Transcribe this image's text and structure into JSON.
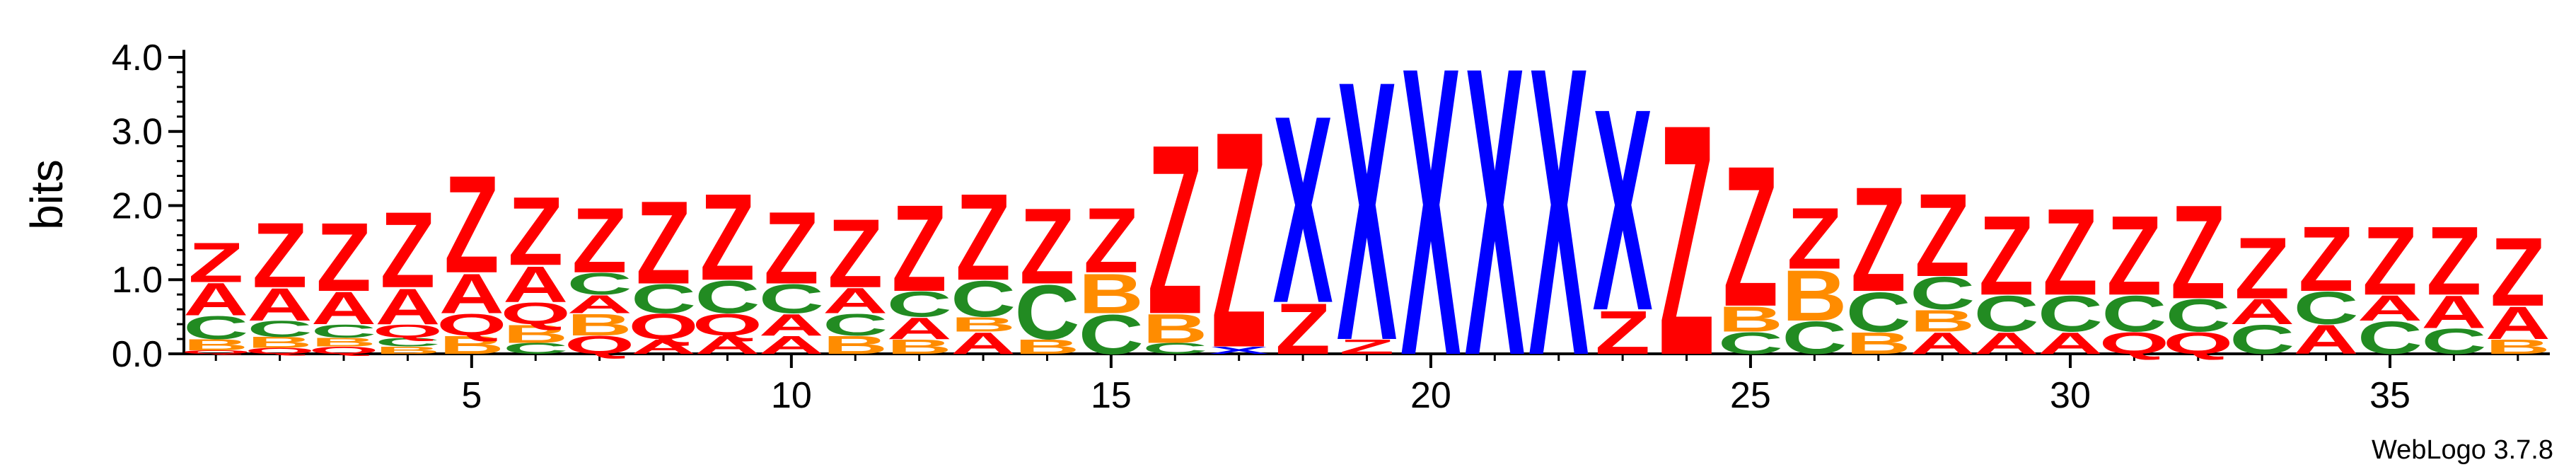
{
  "chart_data": {
    "type": "sequence-logo",
    "title": "",
    "xlabel": "",
    "ylabel": "bits",
    "ylim": [
      0,
      4.2
    ],
    "yticks": [
      0.0,
      1.0,
      2.0,
      3.0,
      4.0
    ],
    "ytick_labels": [
      "0.0",
      "1.0",
      "2.0",
      "3.0",
      "4.0"
    ],
    "xticks": [
      5,
      10,
      15,
      20,
      25,
      30,
      35
    ],
    "xtick_labels": [
      "5",
      "10",
      "15",
      "20",
      "25",
      "30",
      "35"
    ],
    "positions": 37,
    "credit": "WebLogo 3.7.8",
    "colors": {
      "Z": "#ff0000",
      "X": "#0000ff",
      "A": "#ff0000",
      "C": "#228b22",
      "B": "#ff8c00",
      "Q": "#ff0000",
      "D": "#800080"
    },
    "stacks": [
      [
        {
          "l": "Q",
          "h": 0.05
        },
        {
          "l": "B",
          "h": 0.15
        },
        {
          "l": "C",
          "h": 0.32
        },
        {
          "l": "A",
          "h": 0.45
        },
        {
          "l": "Z",
          "h": 0.55
        }
      ],
      [
        {
          "l": "Q",
          "h": 0.08
        },
        {
          "l": "B",
          "h": 0.15
        },
        {
          "l": "C",
          "h": 0.22
        },
        {
          "l": "A",
          "h": 0.45
        },
        {
          "l": "Z",
          "h": 0.9
        }
      ],
      [
        {
          "l": "Q",
          "h": 0.1
        },
        {
          "l": "B",
          "h": 0.12
        },
        {
          "l": "C",
          "h": 0.18
        },
        {
          "l": "A",
          "h": 0.45
        },
        {
          "l": "Z",
          "h": 0.95
        }
      ],
      [
        {
          "l": "B",
          "h": 0.1
        },
        {
          "l": "C",
          "h": 0.12
        },
        {
          "l": "Q",
          "h": 0.18
        },
        {
          "l": "A",
          "h": 0.5
        },
        {
          "l": "Z",
          "h": 1.05
        }
      ],
      [
        {
          "l": "B",
          "h": 0.25
        },
        {
          "l": "Q",
          "h": 0.3
        },
        {
          "l": "A",
          "h": 0.55
        },
        {
          "l": "Z",
          "h": 1.35
        }
      ],
      [
        {
          "l": "C",
          "h": 0.15
        },
        {
          "l": "B",
          "h": 0.25
        },
        {
          "l": "Q",
          "h": 0.3
        },
        {
          "l": "A",
          "h": 0.5
        },
        {
          "l": "Z",
          "h": 0.95
        }
      ],
      [
        {
          "l": "Q",
          "h": 0.25
        },
        {
          "l": "B",
          "h": 0.3
        },
        {
          "l": "A",
          "h": 0.25
        },
        {
          "l": "C",
          "h": 0.3
        },
        {
          "l": "Z",
          "h": 0.9
        }
      ],
      [
        {
          "l": "A",
          "h": 0.2
        },
        {
          "l": "Q",
          "h": 0.35
        },
        {
          "l": "C",
          "h": 0.4
        },
        {
          "l": "Z",
          "h": 1.15
        }
      ],
      [
        {
          "l": "A",
          "h": 0.25
        },
        {
          "l": "Q",
          "h": 0.3
        },
        {
          "l": "C",
          "h": 0.45
        },
        {
          "l": "Z",
          "h": 1.2
        }
      ],
      [
        {
          "l": "A",
          "h": 0.25
        },
        {
          "l": "A",
          "h": 0.3
        },
        {
          "l": "C",
          "h": 0.4
        },
        {
          "l": "Z",
          "h": 1.0
        }
      ],
      [
        {
          "l": "B",
          "h": 0.25
        },
        {
          "l": "C",
          "h": 0.3
        },
        {
          "l": "A",
          "h": 0.35
        },
        {
          "l": "Z",
          "h": 0.95
        }
      ],
      [
        {
          "l": "B",
          "h": 0.2
        },
        {
          "l": "A",
          "h": 0.3
        },
        {
          "l": "C",
          "h": 0.35
        },
        {
          "l": "Z",
          "h": 1.2
        }
      ],
      [
        {
          "l": "A",
          "h": 0.3
        },
        {
          "l": "B",
          "h": 0.2
        },
        {
          "l": "C",
          "h": 0.5
        },
        {
          "l": "Z",
          "h": 1.2
        }
      ],
      [
        {
          "l": "B",
          "h": 0.2
        },
        {
          "l": "C",
          "h": 0.75
        },
        {
          "l": "Z",
          "h": 1.05
        }
      ],
      [
        {
          "l": "C",
          "h": 0.55
        },
        {
          "l": "B",
          "h": 0.55
        },
        {
          "l": "Z",
          "h": 0.9
        }
      ],
      [
        {
          "l": "C",
          "h": 0.15
        },
        {
          "l": "B",
          "h": 0.4
        },
        {
          "l": "Z",
          "h": 2.35
        }
      ],
      [
        {
          "l": "X",
          "h": 0.1
        },
        {
          "l": "Z",
          "h": 3.0
        }
      ],
      [
        {
          "l": "Z",
          "h": 0.7
        },
        {
          "l": "X",
          "h": 2.6
        }
      ],
      [
        {
          "l": "Z",
          "h": 0.2
        },
        {
          "l": "X",
          "h": 3.6
        }
      ],
      [
        {
          "l": "X",
          "h": 4.0
        }
      ],
      [
        {
          "l": "X",
          "h": 4.0
        }
      ],
      [
        {
          "l": "X",
          "h": 4.0
        }
      ],
      [
        {
          "l": "Z",
          "h": 0.6
        },
        {
          "l": "X",
          "h": 2.8
        }
      ],
      [
        {
          "l": "Z",
          "h": 3.2
        }
      ],
      [
        {
          "l": "C",
          "h": 0.3
        },
        {
          "l": "B",
          "h": 0.35
        },
        {
          "l": "Z",
          "h": 1.95
        }
      ],
      [
        {
          "l": "C",
          "h": 0.45
        },
        {
          "l": "B",
          "h": 0.7
        },
        {
          "l": "Z",
          "h": 0.85
        }
      ],
      [
        {
          "l": "B",
          "h": 0.3
        },
        {
          "l": "C",
          "h": 0.55
        },
        {
          "l": "Z",
          "h": 1.45
        }
      ],
      [
        {
          "l": "A",
          "h": 0.3
        },
        {
          "l": "B",
          "h": 0.3
        },
        {
          "l": "C",
          "h": 0.45
        },
        {
          "l": "Z",
          "h": 1.15
        }
      ],
      [
        {
          "l": "A",
          "h": 0.3
        },
        {
          "l": "C",
          "h": 0.5
        },
        {
          "l": "Z",
          "h": 1.1
        }
      ],
      [
        {
          "l": "A",
          "h": 0.3
        },
        {
          "l": "C",
          "h": 0.5
        },
        {
          "l": "Z",
          "h": 1.2
        }
      ],
      [
        {
          "l": "Q",
          "h": 0.3
        },
        {
          "l": "C",
          "h": 0.5
        },
        {
          "l": "Z",
          "h": 1.1
        }
      ],
      [
        {
          "l": "Q",
          "h": 0.3
        },
        {
          "l": "C",
          "h": 0.45
        },
        {
          "l": "Z",
          "h": 1.3
        }
      ],
      [
        {
          "l": "C",
          "h": 0.4
        },
        {
          "l": "A",
          "h": 0.35
        },
        {
          "l": "Z",
          "h": 0.85
        }
      ],
      [
        {
          "l": "A",
          "h": 0.4
        },
        {
          "l": "C",
          "h": 0.45
        },
        {
          "l": "Z",
          "h": 0.9
        }
      ],
      [
        {
          "l": "C",
          "h": 0.45
        },
        {
          "l": "A",
          "h": 0.35
        },
        {
          "l": "Z",
          "h": 0.95
        }
      ],
      [
        {
          "l": "C",
          "h": 0.35
        },
        {
          "l": "A",
          "h": 0.45
        },
        {
          "l": "Z",
          "h": 0.95
        }
      ],
      [
        {
          "l": "B",
          "h": 0.2
        },
        {
          "l": "A",
          "h": 0.45
        },
        {
          "l": "Z",
          "h": 0.95
        }
      ]
    ]
  }
}
